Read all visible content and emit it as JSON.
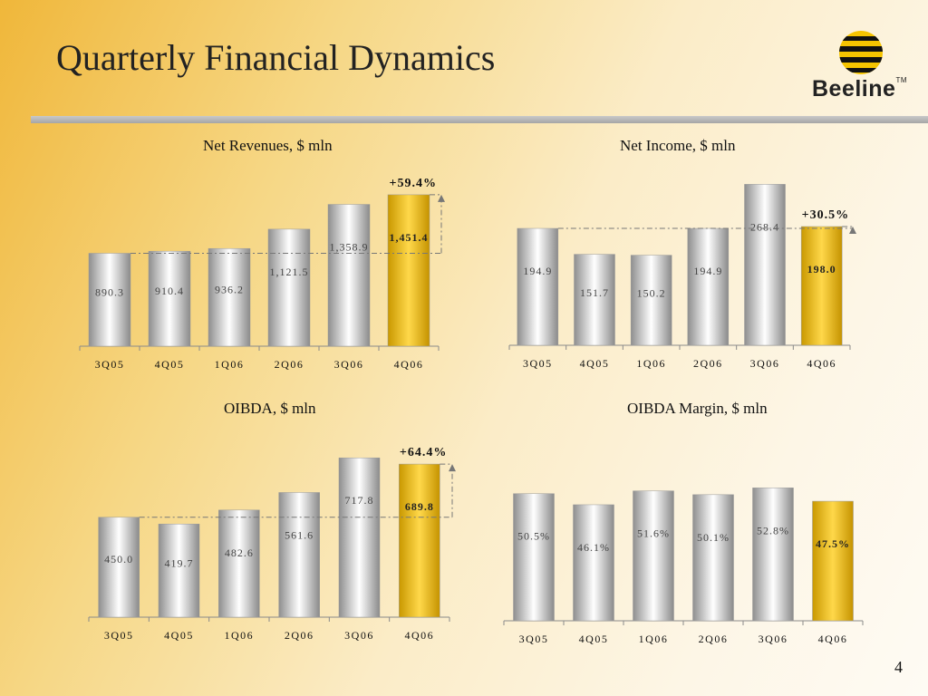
{
  "title": "Quarterly Financial Dynamics",
  "logo": {
    "text": "Beeline",
    "tm": "TM"
  },
  "page_number": "4",
  "colors": {
    "silver": "#cfcfcf",
    "gold": "#e8b600",
    "guide": "#777777"
  },
  "chart_data": [
    {
      "type": "bar",
      "title": "Net Revenues, $ mln",
      "categories": [
        "3Q05",
        "4Q05",
        "1Q06",
        "2Q06",
        "3Q06",
        "4Q06"
      ],
      "values": [
        890.3,
        910.4,
        936.2,
        1121.5,
        1358.9,
        1451.4
      ],
      "labels": [
        "890.3",
        "910.4",
        "936.2",
        "1,121.5",
        "1,358.9",
        "1,451.4"
      ],
      "highlight_index": 5,
      "change_label": "+59.4%",
      "ylim": [
        0,
        1520
      ]
    },
    {
      "type": "bar",
      "title": "Net Income, $ mln",
      "categories": [
        "3Q05",
        "4Q05",
        "1Q06",
        "2Q06",
        "3Q06",
        "4Q06"
      ],
      "values": [
        194.9,
        151.7,
        150.2,
        194.9,
        268.4,
        198.0
      ],
      "labels": [
        "194.9",
        "151.7",
        "150.2",
        "194.9",
        "268.4",
        "198.0"
      ],
      "highlight_index": 5,
      "change_label": "+30.5%",
      "ylim": [
        0,
        272
      ]
    },
    {
      "type": "bar",
      "title": "OIBDA, $ mln",
      "categories": [
        "3Q05",
        "4Q05",
        "1Q06",
        "2Q06",
        "3Q06",
        "4Q06"
      ],
      "values": [
        450.0,
        419.7,
        482.6,
        561.6,
        717.8,
        689.8
      ],
      "labels": [
        "450.0",
        "419.7",
        "482.6",
        "561.6",
        "717.8",
        "689.8"
      ],
      "highlight_index": 5,
      "change_label": "+64.4%",
      "ylim": [
        0,
        735
      ]
    },
    {
      "type": "bar",
      "title": "OIBDA Margin, $ mln",
      "categories": [
        "3Q05",
        "4Q05",
        "1Q06",
        "2Q06",
        "3Q06",
        "4Q06"
      ],
      "values": [
        50.5,
        46.1,
        51.6,
        50.1,
        52.8,
        47.5
      ],
      "labels": [
        "50.5%",
        "46.1%",
        "51.6%",
        "50.1%",
        "52.8%",
        "47.5%"
      ],
      "highlight_index": 5,
      "change_label": "",
      "ylim": [
        0,
        54
      ]
    }
  ]
}
